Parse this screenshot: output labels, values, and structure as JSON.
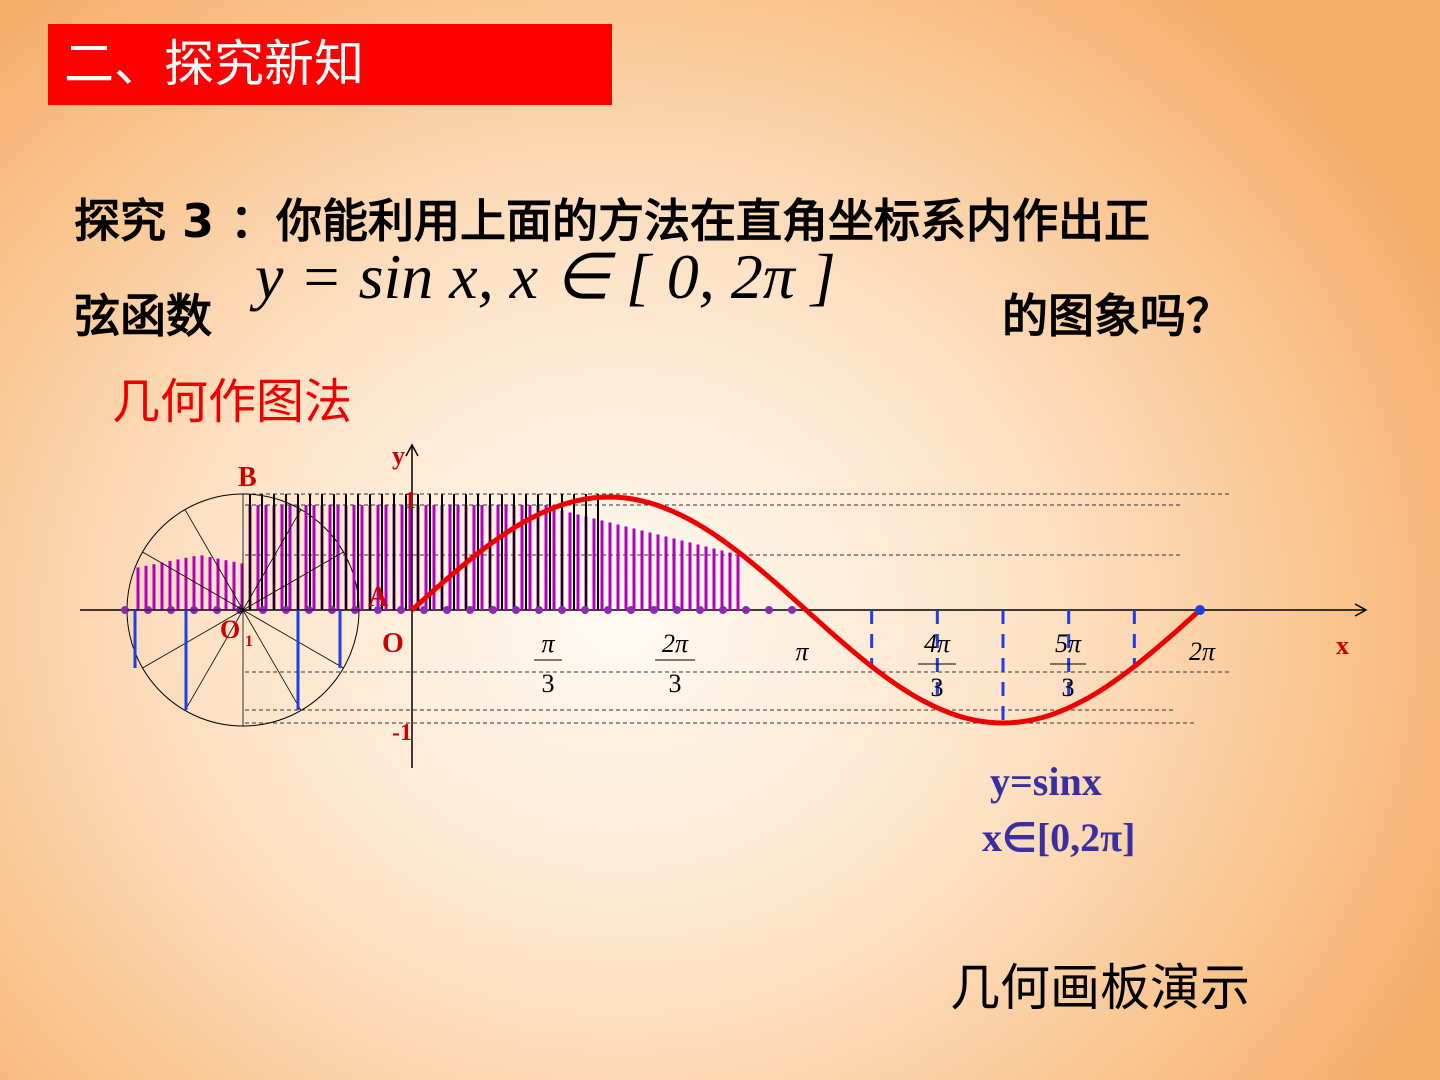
{
  "header": {
    "title": "二、探究新知"
  },
  "question": {
    "line1": "探究 3 ：你能利用上面的方法在直角坐标系内作出正",
    "line2_prefix": "弦函数",
    "formula": "y = sin x, x ∈ [ 0, 2π ]",
    "line2_suffix": "的图象吗？"
  },
  "method": "几何作图法",
  "diagram": {
    "axis_labels": {
      "y": "y",
      "x": "x",
      "one": "1",
      "minus_one": "-1",
      "origin": "O"
    },
    "points": {
      "B": "B",
      "A": "A",
      "O1": "O",
      "O1_sub": "1"
    },
    "x_ticks": [
      {
        "numerator": "π",
        "denominator": "3"
      },
      {
        "numerator": "2π",
        "denominator": "3"
      },
      {
        "label": "π"
      },
      {
        "numerator": "4π",
        "denominator": "3"
      },
      {
        "numerator": "5π",
        "denominator": "3"
      },
      {
        "label": "2π"
      }
    ],
    "caption": [
      "y=sinx",
      "x∈[0,2π]"
    ]
  },
  "demo_link": "几何画板演示"
}
